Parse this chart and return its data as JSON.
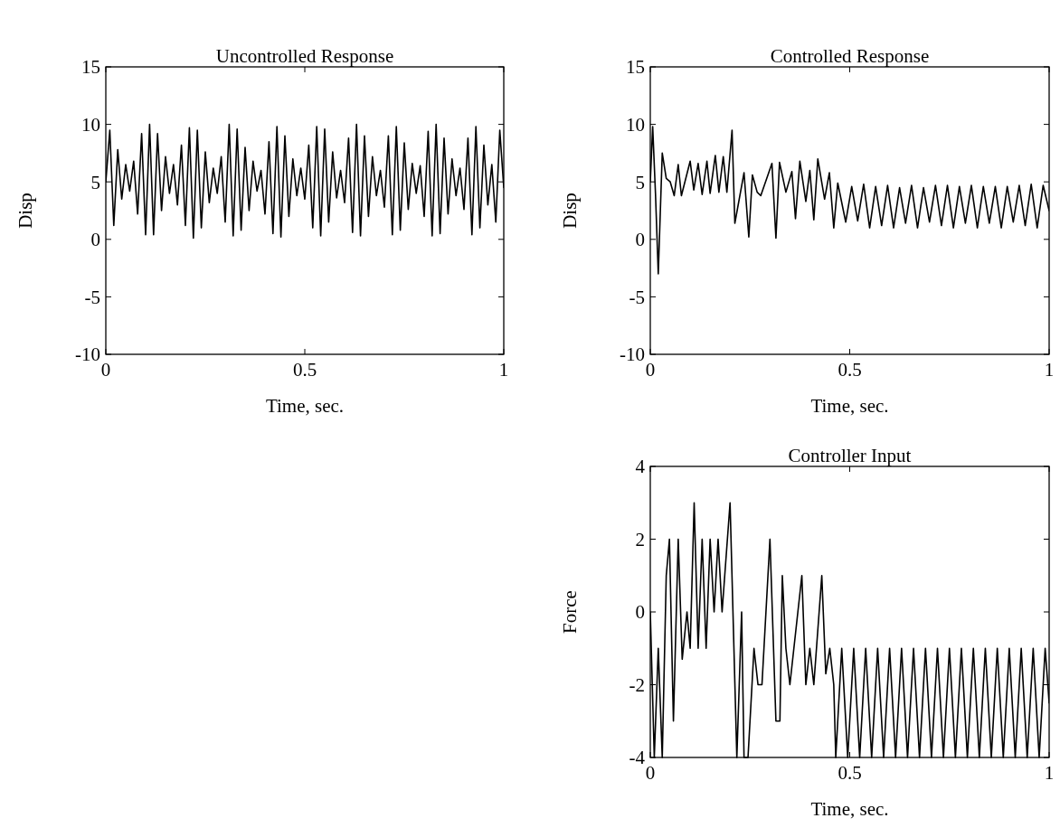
{
  "chart_data": [
    {
      "type": "line",
      "title": "Uncontrolled Response",
      "xlabel": "Time, sec.",
      "ylabel": "Disp",
      "color": "#000000",
      "xlim": [
        0,
        1
      ],
      "xticks": [
        0,
        0.5,
        1
      ],
      "ylim": [
        -10,
        15
      ],
      "yticks": [
        -10,
        -5,
        0,
        5,
        10,
        15
      ],
      "x": [
        0,
        0.01,
        0.02,
        0.03,
        0.04,
        0.05,
        0.06,
        0.07,
        0.08,
        0.09,
        0.1,
        0.11,
        0.12,
        0.13,
        0.14,
        0.15,
        0.16,
        0.17,
        0.18,
        0.19,
        0.2,
        0.21,
        0.22,
        0.23,
        0.24,
        0.25,
        0.26,
        0.27,
        0.28,
        0.29,
        0.3,
        0.31,
        0.32,
        0.33,
        0.34,
        0.35,
        0.36,
        0.37,
        0.38,
        0.39,
        0.4,
        0.41,
        0.42,
        0.43,
        0.44,
        0.45,
        0.46,
        0.47,
        0.48,
        0.49,
        0.5,
        0.51,
        0.52,
        0.53,
        0.54,
        0.55,
        0.56,
        0.57,
        0.58,
        0.59,
        0.6,
        0.61,
        0.62,
        0.63,
        0.64,
        0.65,
        0.66,
        0.67,
        0.68,
        0.69,
        0.7,
        0.71,
        0.72,
        0.73,
        0.74,
        0.75,
        0.76,
        0.77,
        0.78,
        0.79,
        0.8,
        0.81,
        0.82,
        0.83,
        0.84,
        0.85,
        0.86,
        0.87,
        0.88,
        0.89,
        0.9,
        0.91,
        0.92,
        0.93,
        0.94,
        0.95,
        0.96,
        0.97,
        0.98,
        0.99,
        1
      ],
      "values": [
        5,
        9.5,
        1.2,
        7.8,
        3.5,
        6.5,
        4.2,
        6.8,
        2.2,
        9.2,
        0.4,
        10,
        0.4,
        9.2,
        2.5,
        7.2,
        4,
        6.5,
        3,
        8.2,
        1.2,
        9.7,
        0.1,
        9.5,
        1,
        7.6,
        3.2,
        6.2,
        4,
        7.2,
        1.5,
        10,
        0.3,
        9.6,
        0.8,
        8,
        2.5,
        6.8,
        4.2,
        6,
        2.2,
        8.5,
        0.5,
        9.8,
        0.2,
        9,
        2,
        7,
        3.8,
        6.2,
        3.5,
        8.2,
        1,
        9.8,
        0.3,
        9.6,
        1.5,
        7.6,
        3.6,
        6,
        3.2,
        8.8,
        0.6,
        10,
        0.3,
        9,
        2,
        7.2,
        3.8,
        6,
        2.8,
        9,
        0.4,
        9.8,
        0.8,
        8.4,
        2.6,
        6.6,
        4,
        6.4,
        2,
        9.4,
        0.3,
        10,
        0.5,
        8.8,
        2.2,
        7,
        3.8,
        6.2,
        2.6,
        8.8,
        0.4,
        9.8,
        1,
        8.2,
        3,
        6.5,
        1.5,
        9.5,
        4.5
      ]
    },
    {
      "type": "line",
      "title": "Controlled Response",
      "xlabel": "Time, sec.",
      "ylabel": "Disp",
      "color": "#000000",
      "xlim": [
        0,
        1
      ],
      "xticks": [
        0,
        0.5,
        1
      ],
      "ylim": [
        -10,
        15
      ],
      "yticks": [
        -10,
        -5,
        0,
        5,
        10,
        15
      ],
      "x": [
        0,
        0.006,
        0.013,
        0.02,
        0.03,
        0.04,
        0.05,
        0.06,
        0.07,
        0.078,
        0.1,
        0.109,
        0.12,
        0.13,
        0.142,
        0.15,
        0.163,
        0.172,
        0.183,
        0.192,
        0.205,
        0.212,
        0.235,
        0.247,
        0.256,
        0.268,
        0.277,
        0.305,
        0.315,
        0.324,
        0.34,
        0.355,
        0.364,
        0.375,
        0.39,
        0.4,
        0.41,
        0.42,
        0.437,
        0.449,
        0.46,
        0.47,
        0.49,
        0.505,
        0.52,
        0.535,
        0.55,
        0.565,
        0.58,
        0.595,
        0.61,
        0.625,
        0.64,
        0.655,
        0.67,
        0.685,
        0.7,
        0.715,
        0.73,
        0.745,
        0.76,
        0.775,
        0.79,
        0.805,
        0.82,
        0.835,
        0.85,
        0.865,
        0.88,
        0.895,
        0.91,
        0.925,
        0.94,
        0.955,
        0.97,
        0.985,
        1
      ],
      "values": [
        5,
        9.8,
        4,
        -3,
        7.5,
        5.3,
        5,
        3.8,
        6.5,
        3.8,
        6.8,
        4.3,
        6.6,
        3.9,
        6.8,
        4,
        7.3,
        4.1,
        7.2,
        4.1,
        9.5,
        1.4,
        5.8,
        0.2,
        5.6,
        4.1,
        3.8,
        6.6,
        0.1,
        6.7,
        4.1,
        5.9,
        1.8,
        6.8,
        3.3,
        6,
        1.7,
        7,
        3.5,
        5.8,
        1,
        4.9,
        1.5,
        4.6,
        1.6,
        4.8,
        1,
        4.6,
        1.2,
        4.7,
        1,
        4.5,
        1.4,
        4.7,
        1,
        4.5,
        1.5,
        4.7,
        1.2,
        4.7,
        1,
        4.6,
        1.4,
        4.7,
        1,
        4.6,
        1.4,
        4.6,
        1,
        4.6,
        1.5,
        4.7,
        1.2,
        4.8,
        1,
        4.7,
        2.5
      ]
    },
    {
      "type": "line",
      "title": "Controller Input",
      "xlabel": "Time, sec.",
      "ylabel": "Force",
      "color": "#000000",
      "xlim": [
        0,
        1
      ],
      "xticks": [
        0,
        0.5,
        1
      ],
      "ylim": [
        -4,
        4
      ],
      "yticks": [
        -4,
        -2,
        0,
        2,
        4
      ],
      "x": [
        0,
        0.01,
        0.02,
        0.03,
        0.04,
        0.048,
        0.058,
        0.07,
        0.08,
        0.092,
        0.1,
        0.11,
        0.12,
        0.13,
        0.14,
        0.15,
        0.16,
        0.17,
        0.18,
        0.2,
        0.217,
        0.229,
        0.235,
        0.245,
        0.26,
        0.27,
        0.28,
        0.3,
        0.315,
        0.325,
        0.331,
        0.34,
        0.35,
        0.38,
        0.39,
        0.4,
        0.41,
        0.43,
        0.44,
        0.45,
        0.46,
        0.465,
        0.48,
        0.495,
        0.51,
        0.525,
        0.54,
        0.555,
        0.57,
        0.585,
        0.6,
        0.615,
        0.63,
        0.645,
        0.66,
        0.675,
        0.69,
        0.705,
        0.72,
        0.735,
        0.75,
        0.765,
        0.78,
        0.795,
        0.81,
        0.825,
        0.84,
        0.855,
        0.87,
        0.885,
        0.9,
        0.915,
        0.93,
        0.945,
        0.96,
        0.975,
        0.99,
        1
      ],
      "values": [
        0,
        -4,
        -1,
        -4,
        1,
        2,
        -3,
        2,
        -1.3,
        0,
        -1,
        3,
        -1,
        2,
        -1,
        2,
        0,
        2,
        0,
        3,
        -4,
        0,
        -4,
        -4,
        -1,
        -2,
        -2,
        2,
        -3,
        -3,
        1,
        -1,
        -2,
        1,
        -2,
        -1,
        -2,
        1,
        -1.7,
        -1,
        -2,
        -4,
        -1,
        -4,
        -1,
        -4,
        -1,
        -4,
        -1,
        -4,
        -1,
        -4,
        -1,
        -4,
        -1,
        -4,
        -1,
        -4,
        -1,
        -4,
        -1,
        -4,
        -1,
        -4,
        -1,
        -4,
        -1,
        -4,
        -1,
        -4,
        -1,
        -4,
        -1,
        -4,
        -1,
        -4,
        -1,
        -2.5
      ]
    }
  ]
}
